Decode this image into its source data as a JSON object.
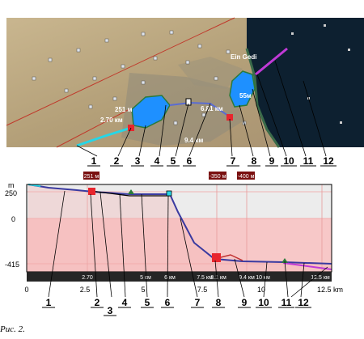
{
  "map": {
    "place": "Ein Gedi",
    "marker_labels": [
      "251 м",
      "2.70 км",
      "6.81 км",
      "55м",
      "9.4 км"
    ]
  },
  "callouts": [
    "1",
    "2",
    "3",
    "4",
    "5",
    "6",
    "7",
    "8",
    "9",
    "10",
    "11",
    "12"
  ],
  "profile": {
    "y_unit": "m",
    "y_ticks": [
      "250",
      "0",
      "-415"
    ],
    "x_ticks": [
      "0",
      "2.5",
      "5",
      "7.5",
      "10",
      "12.5 km"
    ],
    "bar_ticks": [
      "2.70",
      "5 км",
      "6 км",
      "7.5 км",
      "8.1 км",
      "9.4 км",
      "10 км",
      "12.5 км"
    ],
    "flags": [
      "251 м",
      "-350 м",
      "-400 м"
    ]
  },
  "caption": "Рис. 2.",
  "colors": {
    "water": "#1e90ff",
    "route": "#5a6cd2",
    "marker": "#e8252d",
    "cyan": "#26d6e6",
    "magenta": "#c03ad6",
    "sea_dark": "#0d2030",
    "pink": "#f7c8c8"
  }
}
